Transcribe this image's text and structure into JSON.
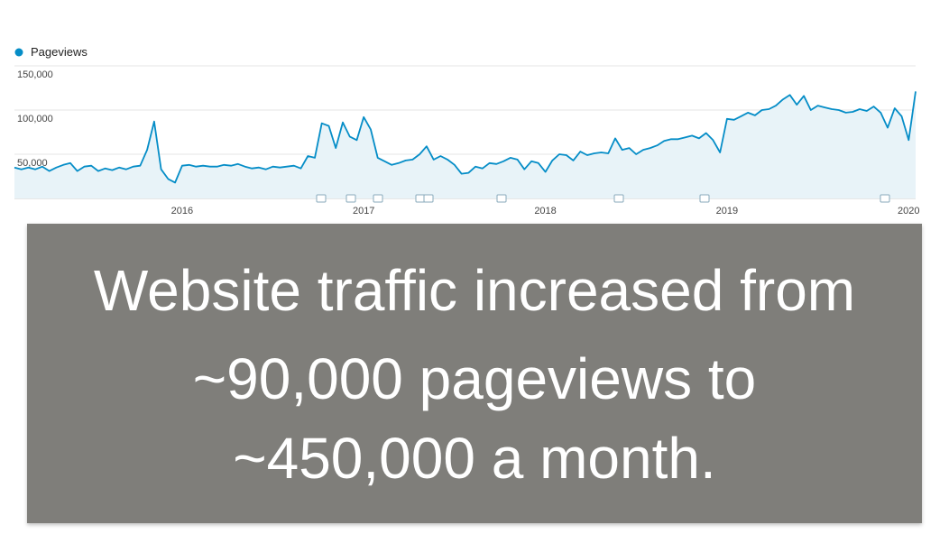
{
  "chart_data": {
    "type": "line",
    "series": [
      {
        "name": "Pageviews",
        "color": "#058dc7",
        "values": [
          35000,
          33000,
          35000,
          33000,
          36000,
          31000,
          35000,
          38000,
          40000,
          31000,
          36000,
          37000,
          31000,
          34000,
          32000,
          35000,
          33000,
          36000,
          37000,
          55000,
          87000,
          33000,
          22000,
          18000,
          37000,
          38000,
          36000,
          37000,
          36000,
          36000,
          38000,
          37000,
          39000,
          36000,
          34000,
          35000,
          33000,
          36000,
          35000,
          36000,
          37000,
          34000,
          48000,
          46000,
          85000,
          82000,
          57000,
          86000,
          70000,
          66000,
          92000,
          78000,
          46000,
          42000,
          38000,
          40000,
          43000,
          44000,
          50000,
          59000,
          44000,
          48000,
          44000,
          38000,
          28000,
          29000,
          36000,
          34000,
          40000,
          39000,
          42000,
          46000,
          44000,
          33000,
          42000,
          40000,
          30000,
          43000,
          50000,
          49000,
          43000,
          53000,
          49000,
          51000,
          52000,
          51000,
          68000,
          55000,
          57000,
          50000,
          55000,
          57000,
          60000,
          65000,
          67000,
          67000,
          69000,
          71000,
          68000,
          74000,
          66000,
          52000,
          90000,
          89000,
          93000,
          97000,
          94000,
          100000,
          101000,
          105000,
          112000,
          117000,
          106000,
          116000,
          100000,
          105000,
          103000,
          101000,
          100000,
          97000,
          98000,
          101000,
          99000,
          104000,
          97000,
          80000,
          102000,
          93000,
          66000,
          121000
        ]
      }
    ],
    "categories": [
      null,
      null,
      null,
      null,
      null,
      null,
      null,
      null,
      null,
      null,
      null,
      null,
      null,
      null,
      null,
      null,
      null,
      null,
      null,
      null,
      null,
      null,
      null,
      null,
      "2016",
      null,
      null,
      null,
      null,
      null,
      null,
      null,
      null,
      null,
      null,
      null,
      null,
      null,
      null,
      null,
      null,
      null,
      null,
      null,
      null,
      null,
      null,
      null,
      null,
      null,
      "2017",
      null,
      null,
      null,
      null,
      null,
      null,
      null,
      null,
      null,
      null,
      null,
      null,
      null,
      null,
      null,
      null,
      null,
      null,
      null,
      null,
      null,
      null,
      null,
      null,
      null,
      "2018",
      null,
      null,
      null,
      null,
      null,
      null,
      null,
      null,
      null,
      null,
      null,
      null,
      null,
      null,
      null,
      null,
      null,
      null,
      null,
      null,
      null,
      null,
      null,
      null,
      null,
      "2019",
      null,
      null,
      null,
      null,
      null,
      null,
      null,
      null,
      null,
      null,
      null,
      null,
      null,
      null,
      null,
      null,
      null,
      null,
      null,
      null,
      null,
      null,
      null,
      null,
      null,
      "2020",
      null
    ],
    "ylim": [
      0,
      150000
    ],
    "yticks": [
      {
        "value": 50000,
        "label": "50,000"
      },
      {
        "value": 100000,
        "label": "100,000"
      },
      {
        "value": 150000,
        "label": "150,000"
      }
    ],
    "grid": true,
    "area_fill": "#e8f3f8"
  },
  "overlay": {
    "lines": [
      "Website traffic increased from",
      "~90,000 pageviews to",
      "~450,000 a month."
    ]
  }
}
